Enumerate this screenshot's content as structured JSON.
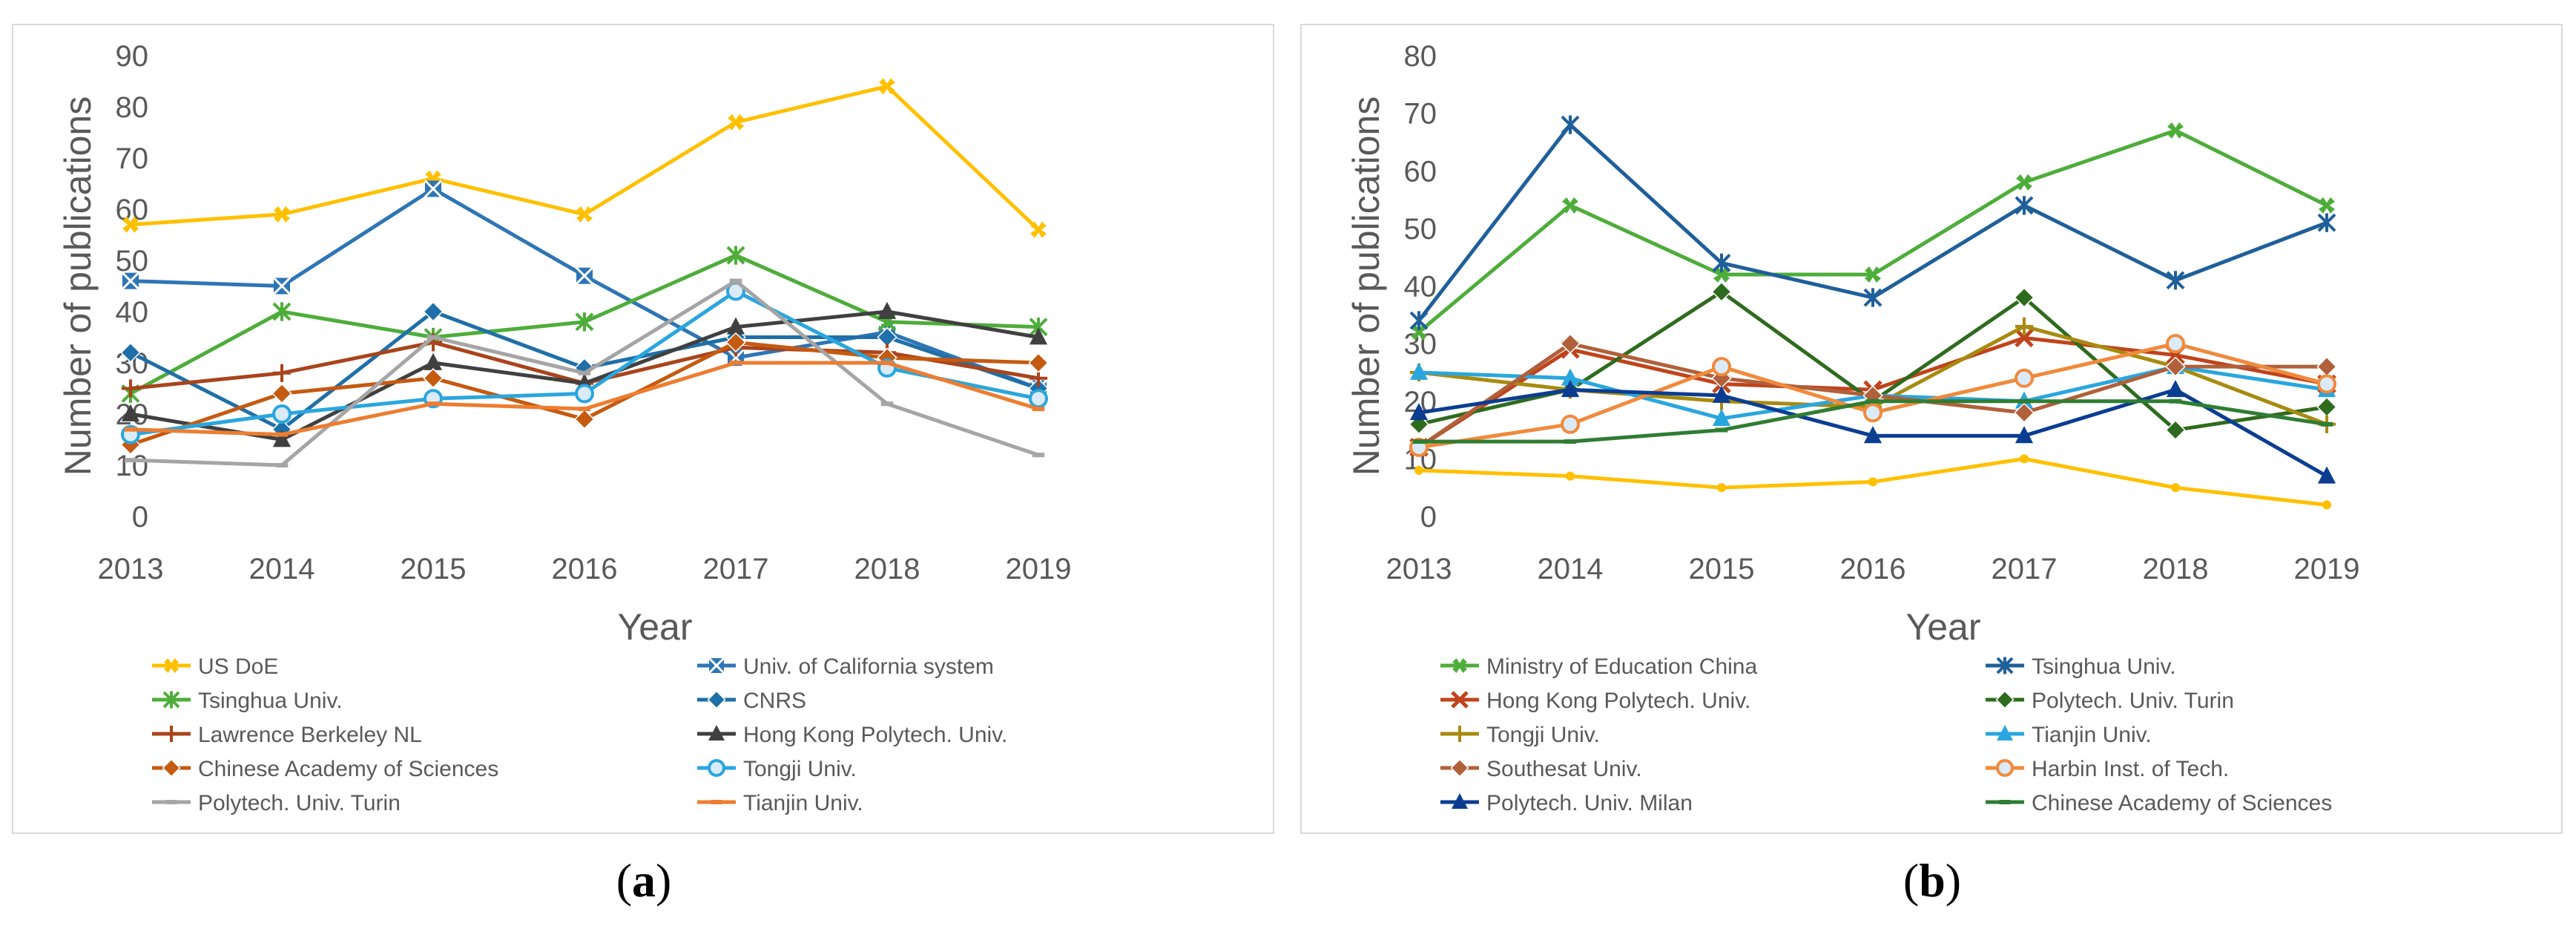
{
  "chart_data": [
    {
      "id": "a",
      "type": "line",
      "panel_label": {
        "open": "(",
        "letter": "a",
        "close": ")"
      },
      "xlabel": "Year",
      "ylabel": "Number of publications",
      "ylim": [
        0,
        90
      ],
      "yticks": [
        0,
        10,
        20,
        30,
        40,
        50,
        60,
        70,
        80,
        90
      ],
      "categories": [
        "2013",
        "2014",
        "2015",
        "2016",
        "2017",
        "2018",
        "2019"
      ],
      "grid": true,
      "legend_position": "bottom",
      "series": [
        {
          "name": "US DoE",
          "color": "#FFC000",
          "marker": "cross-fat",
          "values": [
            57,
            59,
            66,
            59,
            77,
            84,
            56
          ]
        },
        {
          "name": "Univ. of California system",
          "color": "#2E75B6",
          "marker": "square-x",
          "values": [
            46,
            45,
            64,
            47,
            31,
            36,
            25
          ]
        },
        {
          "name": "Tsinghua Univ.",
          "color": "#4EAD3A",
          "marker": "star",
          "values": [
            24,
            40,
            35,
            38,
            51,
            38,
            37
          ]
        },
        {
          "name": "CNRS",
          "color": "#1F6FA8",
          "marker": "diamond",
          "values": [
            32,
            17,
            40,
            29,
            35,
            35,
            25
          ]
        },
        {
          "name": "Lawrence Berkeley NL",
          "color": "#A9441C",
          "marker": "plus",
          "values": [
            25,
            28,
            34,
            26,
            33,
            32,
            27
          ]
        },
        {
          "name": "Hong Kong Polytech. Univ.",
          "color": "#404040",
          "marker": "triangle",
          "values": [
            20,
            15,
            30,
            26,
            37,
            40,
            35
          ]
        },
        {
          "name": "Chinese Academy of Sciences",
          "color": "#C55A11",
          "marker": "diamond",
          "values": [
            14,
            24,
            27,
            19,
            34,
            31,
            30
          ]
        },
        {
          "name": "Tongji Univ.",
          "color": "#2AA6DE",
          "marker": "circle",
          "values": [
            16,
            20,
            23,
            24,
            44,
            29,
            23
          ]
        },
        {
          "name": "Polytech. Univ. Turin",
          "color": "#A5A5A5",
          "marker": "dash",
          "values": [
            11,
            10,
            35,
            28,
            46,
            22,
            12
          ]
        },
        {
          "name": "Tianjin Univ.",
          "color": "#ED7D31",
          "marker": "dash",
          "values": [
            17,
            16,
            22,
            21,
            30,
            30,
            21
          ]
        }
      ]
    },
    {
      "id": "b",
      "type": "line",
      "panel_label": {
        "open": "(",
        "letter": "b",
        "close": ")"
      },
      "xlabel": "Year",
      "ylabel": "Number of publications",
      "ylim": [
        0,
        80
      ],
      "yticks": [
        0,
        10,
        20,
        30,
        40,
        50,
        60,
        70,
        80
      ],
      "categories": [
        "2013",
        "2014",
        "2015",
        "2016",
        "2017",
        "2018",
        "2019"
      ],
      "grid": true,
      "legend_position": "bottom",
      "series": [
        {
          "name": "Ministry of Education China",
          "color": "#4EAD3A",
          "marker": "cross-fat",
          "values": [
            32,
            54,
            42,
            42,
            58,
            67,
            54
          ]
        },
        {
          "name": "Tsinghua Univ.",
          "color": "#1F5F9A",
          "marker": "star",
          "values": [
            34,
            68,
            44,
            38,
            54,
            41,
            51
          ]
        },
        {
          "name": "Hong Kong Polytech. Univ.",
          "color": "#C0431C",
          "marker": "x",
          "values": [
            12,
            29,
            23,
            22,
            31,
            28,
            23
          ]
        },
        {
          "name": "Polytech. Univ. Turin",
          "color": "#2F6B1E",
          "marker": "diamond",
          "values": [
            16,
            22,
            39,
            20,
            38,
            15,
            19
          ]
        },
        {
          "name": "Tongji Univ.",
          "color": "#A78B10",
          "marker": "plus",
          "values": [
            25,
            22,
            20,
            19,
            33,
            26,
            16
          ]
        },
        {
          "name": "Tianjin Univ.",
          "color": "#2AA6DE",
          "marker": "triangle",
          "values": [
            25,
            24,
            17,
            21,
            20,
            26,
            22
          ]
        },
        {
          "name": "Southesat Univ.",
          "color": "#B0603A",
          "marker": "diamond",
          "values": [
            12,
            30,
            24,
            21,
            18,
            26,
            26
          ]
        },
        {
          "name": "Harbin Inst. of Tech.",
          "color": "#F08A3C",
          "marker": "circle",
          "values": [
            12,
            16,
            26,
            18,
            24,
            30,
            23
          ]
        },
        {
          "name": "Polytech. Univ. Milan",
          "color": "#0B3D91",
          "marker": "triangle",
          "values": [
            18,
            22,
            21,
            14,
            14,
            22,
            7
          ]
        },
        {
          "name": "Chinese Academy of Sciences",
          "color": "#2F7D32",
          "marker": "dash",
          "values": [
            13,
            13,
            15,
            20,
            20,
            20,
            16
          ]
        },
        {
          "name": "",
          "color": "#FFC000",
          "marker": "dot",
          "values": [
            8,
            7,
            5,
            6,
            10,
            5,
            2
          ]
        }
      ]
    }
  ]
}
